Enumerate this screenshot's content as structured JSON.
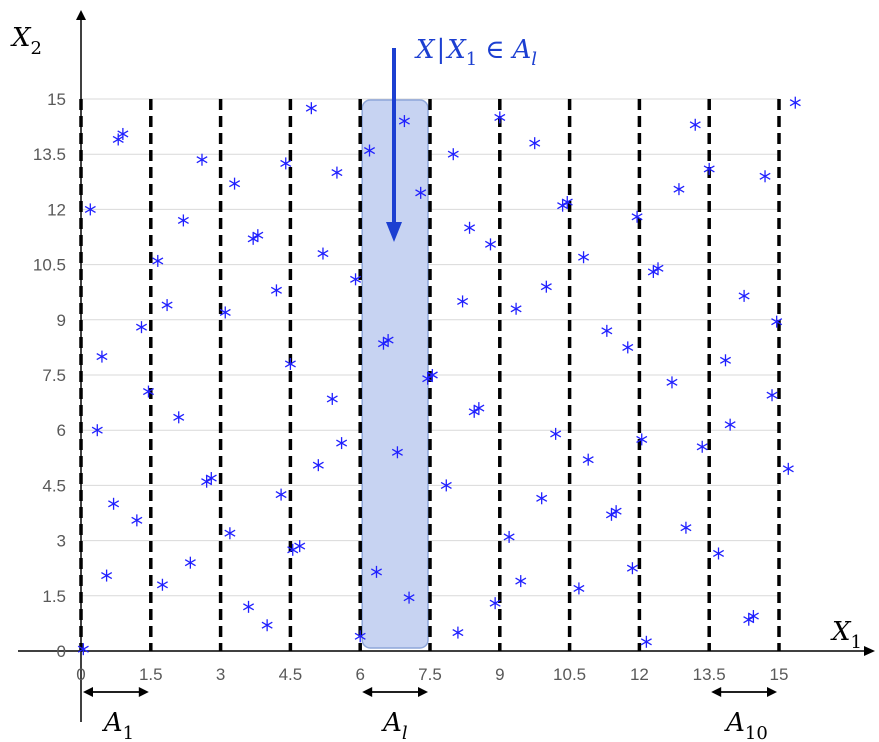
{
  "chart_data": {
    "type": "scatter",
    "title": "",
    "xlabel_main": "X",
    "xlabel_sub": "1",
    "ylabel_main": "X",
    "ylabel_sub": "2",
    "xlim": [
      0,
      15
    ],
    "ylim": [
      0,
      15
    ],
    "x_ticks": [
      "0",
      "1.5",
      "3",
      "4.5",
      "6",
      "7.5",
      "9",
      "10.5",
      "12",
      "13.5",
      "15"
    ],
    "y_ticks": [
      "0",
      "1.5",
      "3",
      "4.5",
      "6",
      "7.5",
      "9",
      "10.5",
      "12",
      "13.5",
      "15"
    ],
    "grid": true,
    "partition_boundaries": [
      0,
      1.5,
      3,
      4.5,
      6,
      7.5,
      9,
      10.5,
      12,
      13.5,
      15
    ],
    "highlight_interval": [
      6,
      7.5
    ],
    "marker": "*",
    "marker_color": "#2020ff",
    "highlight_color": "#c7d3f2",
    "arrow_color": "#1c3fd1",
    "points": [
      [
        0.05,
        0.05
      ],
      [
        0.2,
        12.0
      ],
      [
        0.35,
        6.0
      ],
      [
        0.45,
        8.0
      ],
      [
        0.55,
        2.05
      ],
      [
        0.7,
        4.0
      ],
      [
        0.8,
        13.9
      ],
      [
        0.9,
        14.05
      ],
      [
        1.2,
        3.55
      ],
      [
        1.3,
        8.8
      ],
      [
        1.45,
        7.05
      ],
      [
        1.65,
        10.6
      ],
      [
        1.75,
        1.8
      ],
      [
        1.85,
        9.4
      ],
      [
        2.1,
        6.35
      ],
      [
        2.2,
        11.7
      ],
      [
        2.35,
        2.4
      ],
      [
        2.6,
        13.35
      ],
      [
        2.7,
        4.6
      ],
      [
        2.8,
        4.7
      ],
      [
        3.1,
        9.2
      ],
      [
        3.2,
        3.2
      ],
      [
        3.3,
        12.7
      ],
      [
        3.6,
        1.2
      ],
      [
        3.7,
        11.2
      ],
      [
        3.8,
        11.3
      ],
      [
        4.0,
        0.7
      ],
      [
        4.2,
        9.8
      ],
      [
        4.3,
        4.25
      ],
      [
        4.4,
        13.25
      ],
      [
        4.5,
        7.8
      ],
      [
        4.55,
        2.75
      ],
      [
        4.7,
        2.85
      ],
      [
        4.95,
        14.75
      ],
      [
        5.1,
        5.05
      ],
      [
        5.2,
        10.8
      ],
      [
        5.4,
        6.85
      ],
      [
        5.5,
        13.0
      ],
      [
        5.6,
        5.65
      ],
      [
        5.9,
        10.1
      ],
      [
        6.0,
        0.4
      ],
      [
        6.2,
        13.6
      ],
      [
        6.35,
        2.15
      ],
      [
        6.5,
        8.35
      ],
      [
        6.6,
        8.45
      ],
      [
        6.8,
        5.4
      ],
      [
        6.95,
        14.4
      ],
      [
        7.05,
        1.45
      ],
      [
        7.3,
        12.45
      ],
      [
        7.45,
        7.4
      ],
      [
        7.55,
        7.5
      ],
      [
        7.85,
        4.5
      ],
      [
        8.0,
        13.5
      ],
      [
        8.1,
        0.5
      ],
      [
        8.2,
        9.5
      ],
      [
        8.35,
        11.5
      ],
      [
        8.45,
        6.5
      ],
      [
        8.55,
        6.6
      ],
      [
        8.8,
        11.05
      ],
      [
        8.9,
        1.3
      ],
      [
        9.0,
        14.5
      ],
      [
        9.2,
        3.1
      ],
      [
        9.35,
        9.3
      ],
      [
        9.45,
        1.9
      ],
      [
        9.75,
        13.8
      ],
      [
        9.9,
        4.15
      ],
      [
        10.0,
        9.9
      ],
      [
        10.2,
        5.9
      ],
      [
        10.35,
        12.1
      ],
      [
        10.45,
        12.2
      ],
      [
        10.7,
        1.7
      ],
      [
        10.8,
        10.7
      ],
      [
        10.9,
        5.2
      ],
      [
        11.3,
        8.7
      ],
      [
        11.4,
        3.7
      ],
      [
        11.5,
        3.8
      ],
      [
        11.75,
        8.25
      ],
      [
        11.85,
        2.25
      ],
      [
        11.95,
        11.8
      ],
      [
        12.05,
        5.75
      ],
      [
        12.15,
        0.25
      ],
      [
        12.3,
        10.3
      ],
      [
        12.4,
        10.4
      ],
      [
        12.7,
        7.3
      ],
      [
        12.85,
        12.55
      ],
      [
        13.0,
        3.35
      ],
      [
        13.2,
        14.3
      ],
      [
        13.35,
        5.55
      ],
      [
        13.5,
        13.1
      ],
      [
        13.7,
        2.65
      ],
      [
        13.85,
        7.9
      ],
      [
        13.95,
        6.15
      ],
      [
        14.25,
        9.65
      ],
      [
        14.35,
        0.85
      ],
      [
        14.45,
        0.95
      ],
      [
        14.7,
        12.9
      ],
      [
        14.85,
        6.95
      ],
      [
        14.95,
        8.95
      ],
      [
        15.2,
        4.95
      ],
      [
        15.35,
        14.9
      ]
    ],
    "annotations": {
      "top_main": "X",
      "top_sep": "|",
      "top_sub_var": "X",
      "top_sub_var_index": "1",
      "top_in": "∈",
      "top_set": "A",
      "top_set_index": "l",
      "intervals": [
        {
          "main": "A",
          "sub": "1",
          "range": [
            0,
            1.5
          ]
        },
        {
          "main": "A",
          "sub": "l",
          "range": [
            6,
            7.5
          ]
        },
        {
          "main": "A",
          "sub": "10",
          "range": [
            13.5,
            15
          ]
        }
      ]
    }
  }
}
